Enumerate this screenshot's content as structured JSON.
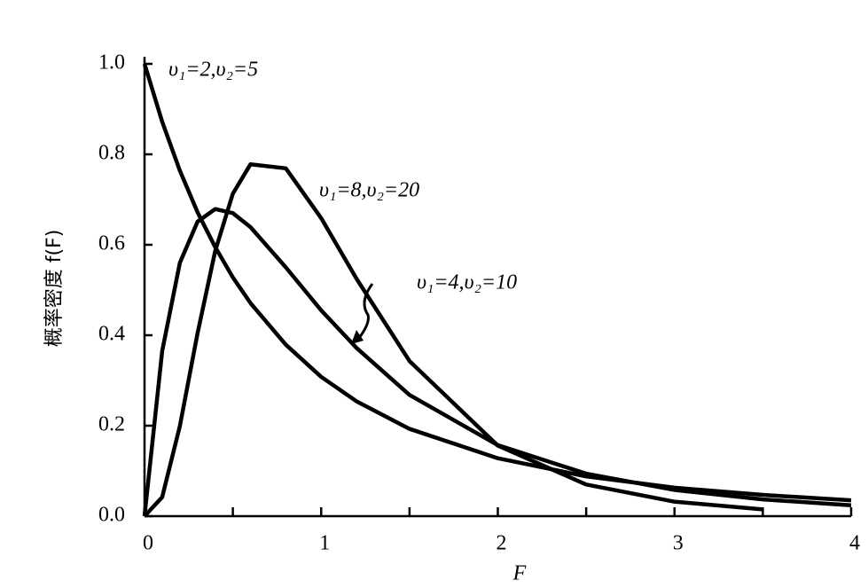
{
  "chart_data": {
    "type": "line",
    "x_label": "F",
    "y_label": "概率密度 f(F)",
    "x": [
      0,
      0.1,
      0.2,
      0.3,
      0.4,
      0.5,
      0.6,
      0.8,
      1.0,
      1.2,
      1.5,
      2,
      2.5,
      3,
      3.5,
      4
    ],
    "series": [
      {
        "name": "υ₁=2,υ₂=5",
        "color": "#000000",
        "values": [
          1.0,
          0.872,
          0.764,
          0.672,
          0.595,
          0.528,
          0.471,
          0.379,
          0.308,
          0.254,
          0.193,
          0.128,
          0.088,
          0.063,
          0.047,
          0.035
        ]
      },
      {
        "name": "υ₁=8,υ₂=20",
        "color": "#000000",
        "values": [
          0,
          0.042,
          0.199,
          0.404,
          0.586,
          0.713,
          0.778,
          0.769,
          0.659,
          0.525,
          0.343,
          0.156,
          0.07,
          0.032,
          0.015,
          null
        ]
      },
      {
        "name": "υ₁=4,υ₂=10",
        "color": "#000000",
        "values": [
          0,
          0.365,
          0.56,
          0.651,
          0.679,
          0.67,
          0.639,
          0.55,
          0.455,
          0.372,
          0.268,
          0.157,
          0.094,
          0.058,
          0.037,
          0.024
        ]
      }
    ],
    "xlim": [
      0,
      4
    ],
    "xticks": [
      0,
      1,
      2,
      3,
      4
    ],
    "ylim": [
      0,
      1
    ],
    "yticks": [
      {
        "value": 0,
        "label": "0.0"
      },
      0.2,
      0.4,
      0.6,
      0.8,
      {
        "value": 1,
        "label": "1.0"
      }
    ],
    "grid": false
  }
}
